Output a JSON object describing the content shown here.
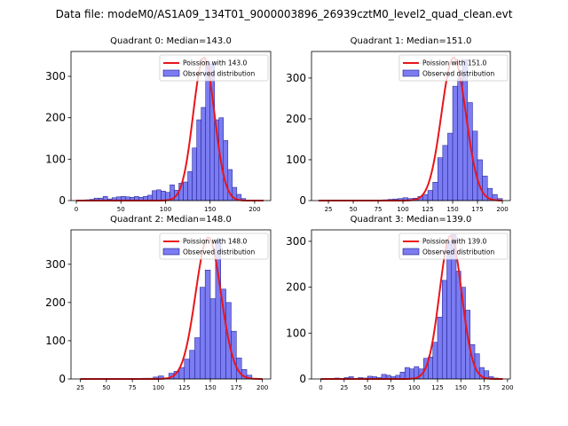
{
  "figure": {
    "suptitle": "Data file: modeM0/AS1A09_134T01_9000003896_26939cztM0_level2_quad_clean.evt",
    "colors": {
      "bar_fill": "#7b7bf2",
      "bar_edge": "#1a1a8c",
      "fit_line": "#e8161b"
    }
  },
  "chart_data": [
    {
      "type": "bar",
      "title": "Quadrant 0: Median=143.0",
      "legend": {
        "fit": "Poission with 143.0",
        "observed": "Observed distribution",
        "position": "top-right"
      },
      "xlim": [
        -6,
        218
      ],
      "ylim": [
        0,
        360
      ],
      "xticks": [
        0,
        50,
        100,
        150,
        200
      ],
      "yticks": [
        0,
        100,
        200,
        300
      ],
      "bin_width": 5,
      "bins": [
        [
          10,
          2
        ],
        [
          15,
          3
        ],
        [
          20,
          6
        ],
        [
          25,
          6
        ],
        [
          30,
          10
        ],
        [
          35,
          4
        ],
        [
          40,
          7
        ],
        [
          45,
          9
        ],
        [
          50,
          10
        ],
        [
          55,
          9
        ],
        [
          60,
          8
        ],
        [
          65,
          10
        ],
        [
          70,
          8
        ],
        [
          75,
          10
        ],
        [
          80,
          13
        ],
        [
          85,
          24
        ],
        [
          90,
          26
        ],
        [
          95,
          23
        ],
        [
          100,
          20
        ],
        [
          105,
          38
        ],
        [
          110,
          25
        ],
        [
          115,
          42
        ],
        [
          120,
          45
        ],
        [
          125,
          70
        ],
        [
          130,
          127
        ],
        [
          135,
          195
        ],
        [
          140,
          225
        ],
        [
          145,
          335
        ],
        [
          150,
          330
        ],
        [
          155,
          195
        ],
        [
          160,
          200
        ],
        [
          165,
          145
        ],
        [
          170,
          75
        ],
        [
          175,
          32
        ],
        [
          180,
          15
        ],
        [
          185,
          5
        ]
      ],
      "fit": {
        "mean": 143,
        "peak": 345,
        "range": [
          0,
          210
        ]
      }
    },
    {
      "type": "bar",
      "title": "Quadrant 1: Median=151.0",
      "legend": {
        "fit": "Poission with 151.0",
        "observed": "Observed distribution",
        "position": "top-right"
      },
      "xlim": [
        8,
        208
      ],
      "ylim": [
        0,
        365
      ],
      "xticks": [
        25,
        50,
        75,
        100,
        125,
        150,
        175,
        200
      ],
      "yticks": [
        0,
        100,
        200,
        300
      ],
      "bin_width": 5,
      "bins": [
        [
          80,
          2
        ],
        [
          85,
          3
        ],
        [
          90,
          4
        ],
        [
          95,
          5
        ],
        [
          100,
          7
        ],
        [
          105,
          5
        ],
        [
          110,
          6
        ],
        [
          115,
          10
        ],
        [
          120,
          15
        ],
        [
          125,
          25
        ],
        [
          130,
          45
        ],
        [
          135,
          105
        ],
        [
          140,
          135
        ],
        [
          145,
          165
        ],
        [
          150,
          280
        ],
        [
          155,
          300
        ],
        [
          160,
          345
        ],
        [
          165,
          240
        ],
        [
          170,
          170
        ],
        [
          175,
          100
        ],
        [
          180,
          60
        ],
        [
          185,
          30
        ],
        [
          190,
          15
        ],
        [
          195,
          5
        ]
      ],
      "fit": {
        "mean": 151,
        "peak": 350,
        "range": [
          15,
          200
        ]
      }
    },
    {
      "type": "bar",
      "title": "Quadrant 2: Median=148.0",
      "legend": {
        "fit": "Poission with 148.0",
        "observed": "Observed distribution",
        "position": "top-right"
      },
      "xlim": [
        16,
        208
      ],
      "ylim": [
        0,
        390
      ],
      "xticks": [
        25,
        50,
        75,
        100,
        125,
        150,
        175,
        200
      ],
      "yticks": [
        0,
        100,
        200,
        300
      ],
      "bin_width": 5,
      "bins": [
        [
          85,
          2
        ],
        [
          90,
          2
        ],
        [
          95,
          5
        ],
        [
          100,
          8
        ],
        [
          105,
          3
        ],
        [
          110,
          15
        ],
        [
          115,
          20
        ],
        [
          120,
          30
        ],
        [
          125,
          52
        ],
        [
          130,
          75
        ],
        [
          135,
          108
        ],
        [
          140,
          240
        ],
        [
          145,
          285
        ],
        [
          150,
          210
        ],
        [
          155,
          365
        ],
        [
          160,
          235
        ],
        [
          165,
          200
        ],
        [
          170,
          125
        ],
        [
          175,
          55
        ],
        [
          180,
          25
        ],
        [
          185,
          10
        ]
      ],
      "fit": {
        "mean": 148,
        "peak": 370,
        "range": [
          25,
          200
        ]
      }
    },
    {
      "type": "bar",
      "title": "Quadrant 3: Median=139.0",
      "legend": {
        "fit": "Poission with 139.0",
        "observed": "Observed distribution",
        "position": "top-right"
      },
      "xlim": [
        -10,
        203
      ],
      "ylim": [
        0,
        325
      ],
      "xticks": [
        0,
        25,
        50,
        75,
        100,
        125,
        150,
        175,
        200
      ],
      "yticks": [
        0,
        100,
        200,
        300
      ],
      "bin_width": 5,
      "bins": [
        [
          15,
          2
        ],
        [
          25,
          3
        ],
        [
          30,
          5
        ],
        [
          40,
          3
        ],
        [
          45,
          2
        ],
        [
          50,
          6
        ],
        [
          55,
          5
        ],
        [
          60,
          3
        ],
        [
          65,
          10
        ],
        [
          70,
          8
        ],
        [
          75,
          5
        ],
        [
          80,
          8
        ],
        [
          85,
          15
        ],
        [
          90,
          25
        ],
        [
          95,
          22
        ],
        [
          100,
          27
        ],
        [
          105,
          22
        ],
        [
          110,
          45
        ],
        [
          115,
          48
        ],
        [
          120,
          80
        ],
        [
          125,
          135
        ],
        [
          130,
          215
        ],
        [
          135,
          300
        ],
        [
          140,
          315
        ],
        [
          145,
          235
        ],
        [
          150,
          200
        ],
        [
          155,
          150
        ],
        [
          160,
          75
        ],
        [
          165,
          55
        ],
        [
          170,
          25
        ],
        [
          175,
          18
        ],
        [
          180,
          5
        ],
        [
          185,
          2
        ]
      ],
      "fit": {
        "mean": 139,
        "peak": 312,
        "range": [
          0,
          195
        ]
      }
    }
  ]
}
